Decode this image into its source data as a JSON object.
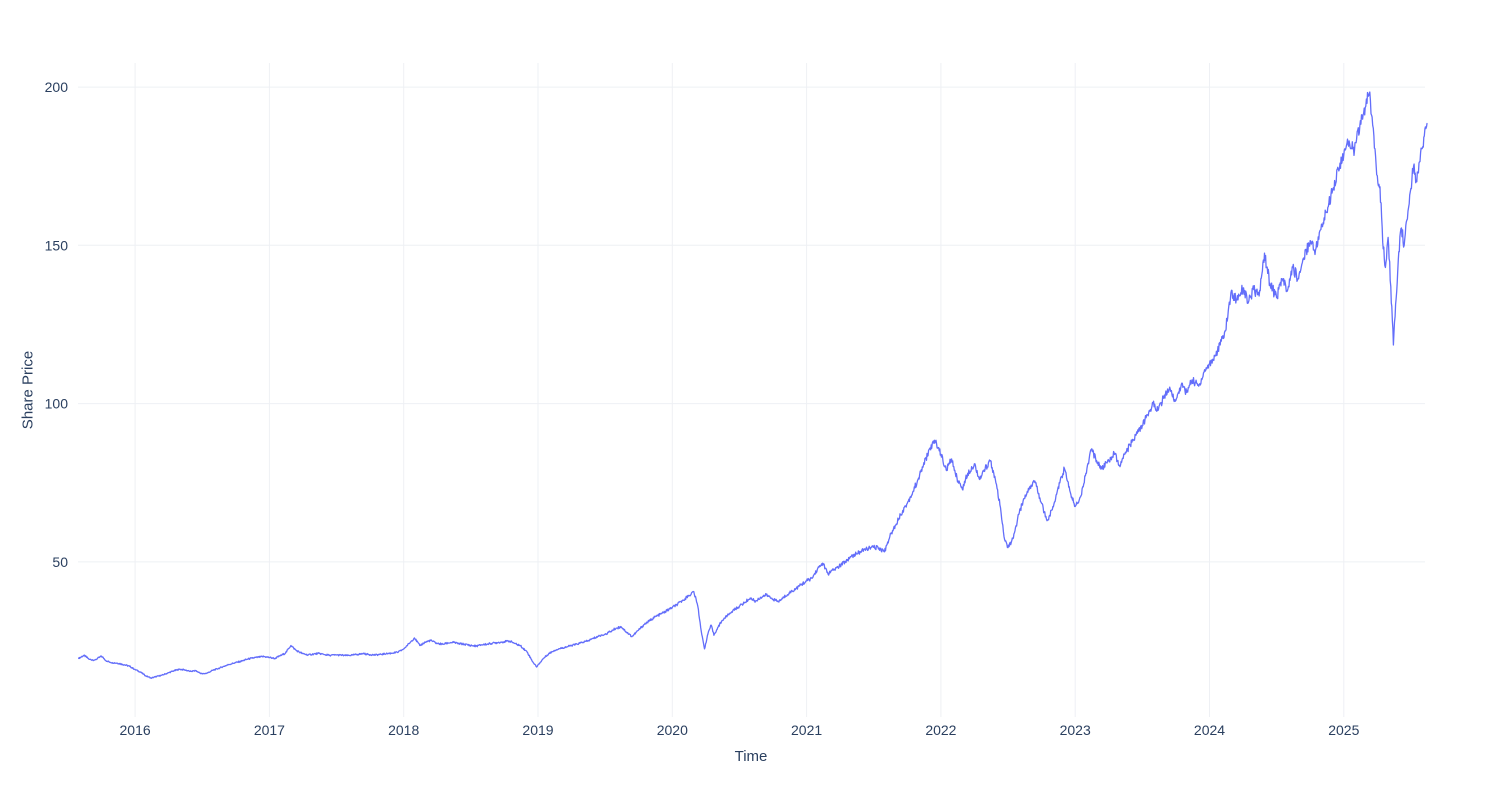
{
  "chart_data": {
    "type": "line",
    "title": "",
    "xlabel": "Time",
    "ylabel": "Share Price",
    "legend": "none",
    "grid": true,
    "x_tick_labels": [
      "2016",
      "2017",
      "2018",
      "2019",
      "2020",
      "2021",
      "2022",
      "2023",
      "2024",
      "2025"
    ],
    "x_tick_values": [
      2016,
      2017,
      2018,
      2019,
      2020,
      2021,
      2022,
      2023,
      2024,
      2025
    ],
    "y_tick_labels": [
      "50",
      "100",
      "150",
      "200"
    ],
    "y_tick_values": [
      50,
      100,
      150,
      200
    ],
    "x_range": [
      2015.575,
      2025.605
    ],
    "y_range": [
      1,
      207.6
    ],
    "colors": {
      "line": "#636efa",
      "tick_text": "#2a3f5f",
      "axis_title_text": "#2a3f5f",
      "grid": "#eef0f4",
      "background": "#ffffff"
    },
    "series": [
      {
        "name": "Share Price",
        "points": [
          [
            2015.58,
            19.5
          ],
          [
            2015.62,
            20.5
          ],
          [
            2015.66,
            19.2
          ],
          [
            2015.7,
            19.0
          ],
          [
            2015.75,
            20.2
          ],
          [
            2015.79,
            18.6
          ],
          [
            2015.83,
            18.2
          ],
          [
            2015.87,
            18.0
          ],
          [
            2015.92,
            17.5
          ],
          [
            2015.96,
            17.0
          ],
          [
            2016.0,
            16.0
          ],
          [
            2016.04,
            15.2
          ],
          [
            2016.08,
            14.0
          ],
          [
            2016.12,
            13.3
          ],
          [
            2016.16,
            13.8
          ],
          [
            2016.2,
            14.2
          ],
          [
            2016.25,
            15.0
          ],
          [
            2016.29,
            15.6
          ],
          [
            2016.33,
            16.1
          ],
          [
            2016.37,
            15.9
          ],
          [
            2016.41,
            15.4
          ],
          [
            2016.45,
            15.6
          ],
          [
            2016.5,
            14.6
          ],
          [
            2016.54,
            14.9
          ],
          [
            2016.58,
            15.8
          ],
          [
            2016.62,
            16.3
          ],
          [
            2016.66,
            17.0
          ],
          [
            2016.7,
            17.6
          ],
          [
            2016.75,
            18.2
          ],
          [
            2016.79,
            18.6
          ],
          [
            2016.83,
            19.2
          ],
          [
            2016.87,
            19.6
          ],
          [
            2016.92,
            19.9
          ],
          [
            2016.96,
            20.1
          ],
          [
            2017.0,
            19.8
          ],
          [
            2017.04,
            19.5
          ],
          [
            2017.08,
            20.3
          ],
          [
            2017.12,
            21.2
          ],
          [
            2017.16,
            23.6
          ],
          [
            2017.2,
            22.0
          ],
          [
            2017.25,
            21.0
          ],
          [
            2017.29,
            20.6
          ],
          [
            2017.33,
            20.9
          ],
          [
            2017.37,
            21.1
          ],
          [
            2017.41,
            20.7
          ],
          [
            2017.45,
            20.5
          ],
          [
            2017.5,
            20.6
          ],
          [
            2017.54,
            20.5
          ],
          [
            2017.58,
            20.4
          ],
          [
            2017.62,
            20.6
          ],
          [
            2017.66,
            20.8
          ],
          [
            2017.7,
            21.0
          ],
          [
            2017.75,
            20.7
          ],
          [
            2017.79,
            20.6
          ],
          [
            2017.83,
            20.8
          ],
          [
            2017.87,
            21.0
          ],
          [
            2017.92,
            21.2
          ],
          [
            2017.96,
            21.5
          ],
          [
            2018.0,
            22.5
          ],
          [
            2018.04,
            24.2
          ],
          [
            2018.08,
            26.0
          ],
          [
            2018.12,
            23.6
          ],
          [
            2018.16,
            24.6
          ],
          [
            2018.2,
            25.2
          ],
          [
            2018.25,
            24.2
          ],
          [
            2018.29,
            24.0
          ],
          [
            2018.33,
            24.4
          ],
          [
            2018.37,
            24.6
          ],
          [
            2018.41,
            24.2
          ],
          [
            2018.45,
            24.0
          ],
          [
            2018.5,
            23.6
          ],
          [
            2018.54,
            23.4
          ],
          [
            2018.58,
            23.8
          ],
          [
            2018.62,
            24.0
          ],
          [
            2018.66,
            24.3
          ],
          [
            2018.7,
            24.5
          ],
          [
            2018.75,
            24.8
          ],
          [
            2018.79,
            25.0
          ],
          [
            2018.83,
            24.2
          ],
          [
            2018.87,
            23.5
          ],
          [
            2018.92,
            21.5
          ],
          [
            2018.96,
            18.5
          ],
          [
            2018.99,
            16.8
          ],
          [
            2019.04,
            19.5
          ],
          [
            2019.08,
            21.0
          ],
          [
            2019.12,
            22.0
          ],
          [
            2019.16,
            22.6
          ],
          [
            2019.2,
            23.0
          ],
          [
            2019.25,
            23.6
          ],
          [
            2019.29,
            24.0
          ],
          [
            2019.33,
            24.6
          ],
          [
            2019.37,
            25.0
          ],
          [
            2019.41,
            25.8
          ],
          [
            2019.45,
            26.5
          ],
          [
            2019.5,
            27.2
          ],
          [
            2019.54,
            28.0
          ],
          [
            2019.58,
            29.0
          ],
          [
            2019.62,
            29.5
          ],
          [
            2019.66,
            27.8
          ],
          [
            2019.7,
            26.4
          ],
          [
            2019.75,
            28.5
          ],
          [
            2019.79,
            30.2
          ],
          [
            2019.83,
            31.4
          ],
          [
            2019.87,
            32.6
          ],
          [
            2019.92,
            33.6
          ],
          [
            2019.96,
            34.6
          ],
          [
            2020.0,
            35.6
          ],
          [
            2020.04,
            36.6
          ],
          [
            2020.08,
            38.0
          ],
          [
            2020.12,
            39.2
          ],
          [
            2020.16,
            40.6
          ],
          [
            2020.19,
            36.0
          ],
          [
            2020.22,
            27.0
          ],
          [
            2020.24,
            22.5
          ],
          [
            2020.27,
            28.0
          ],
          [
            2020.29,
            30.0
          ],
          [
            2020.31,
            26.8
          ],
          [
            2020.33,
            28.5
          ],
          [
            2020.37,
            31.5
          ],
          [
            2020.41,
            33.0
          ],
          [
            2020.45,
            34.5
          ],
          [
            2020.5,
            36.0
          ],
          [
            2020.54,
            37.2
          ],
          [
            2020.58,
            38.6
          ],
          [
            2020.62,
            37.6
          ],
          [
            2020.66,
            38.8
          ],
          [
            2020.7,
            39.6
          ],
          [
            2020.75,
            38.2
          ],
          [
            2020.79,
            37.4
          ],
          [
            2020.83,
            38.8
          ],
          [
            2020.87,
            40.2
          ],
          [
            2020.92,
            41.5
          ],
          [
            2020.96,
            42.8
          ],
          [
            2021.0,
            44.0
          ],
          [
            2021.04,
            44.8
          ],
          [
            2021.08,
            47.6
          ],
          [
            2021.12,
            49.6
          ],
          [
            2021.16,
            46.2
          ],
          [
            2021.2,
            47.4
          ],
          [
            2021.25,
            48.8
          ],
          [
            2021.29,
            50.2
          ],
          [
            2021.33,
            51.6
          ],
          [
            2021.37,
            52.6
          ],
          [
            2021.41,
            53.4
          ],
          [
            2021.45,
            54.2
          ],
          [
            2021.5,
            54.6
          ],
          [
            2021.54,
            54.4
          ],
          [
            2021.58,
            53.2
          ],
          [
            2021.62,
            58.0
          ],
          [
            2021.66,
            61.5
          ],
          [
            2021.7,
            65.0
          ],
          [
            2021.75,
            68.5
          ],
          [
            2021.79,
            72.0
          ],
          [
            2021.83,
            76.0
          ],
          [
            2021.87,
            80.5
          ],
          [
            2021.92,
            86.0
          ],
          [
            2021.96,
            88.2
          ],
          [
            2022.0,
            84.0
          ],
          [
            2022.04,
            79.0
          ],
          [
            2022.08,
            82.5
          ],
          [
            2022.12,
            76.5
          ],
          [
            2022.16,
            73.0
          ],
          [
            2022.2,
            78.0
          ],
          [
            2022.25,
            81.0
          ],
          [
            2022.29,
            76.0
          ],
          [
            2022.33,
            79.5
          ],
          [
            2022.37,
            82.0
          ],
          [
            2022.41,
            75.0
          ],
          [
            2022.44,
            68.0
          ],
          [
            2022.47,
            58.0
          ],
          [
            2022.5,
            54.5
          ],
          [
            2022.54,
            57.5
          ],
          [
            2022.58,
            65.0
          ],
          [
            2022.62,
            70.0
          ],
          [
            2022.66,
            73.5
          ],
          [
            2022.7,
            75.5
          ],
          [
            2022.75,
            68.5
          ],
          [
            2022.79,
            63.0
          ],
          [
            2022.83,
            66.5
          ],
          [
            2022.87,
            73.0
          ],
          [
            2022.92,
            79.5
          ],
          [
            2022.96,
            72.5
          ],
          [
            2023.0,
            67.5
          ],
          [
            2023.04,
            70.5
          ],
          [
            2023.08,
            78.0
          ],
          [
            2023.12,
            85.5
          ],
          [
            2023.16,
            82.0
          ],
          [
            2023.2,
            79.5
          ],
          [
            2023.25,
            82.0
          ],
          [
            2023.29,
            84.5
          ],
          [
            2023.33,
            80.5
          ],
          [
            2023.37,
            84.0
          ],
          [
            2023.41,
            87.0
          ],
          [
            2023.45,
            90.0
          ],
          [
            2023.5,
            93.0
          ],
          [
            2023.54,
            96.5
          ],
          [
            2023.58,
            100.0
          ],
          [
            2023.62,
            98.0
          ],
          [
            2023.66,
            102.0
          ],
          [
            2023.7,
            104.5
          ],
          [
            2023.75,
            101.0
          ],
          [
            2023.79,
            106.0
          ],
          [
            2023.83,
            103.5
          ],
          [
            2023.87,
            107.5
          ],
          [
            2023.92,
            105.5
          ],
          [
            2023.96,
            110.0
          ],
          [
            2024.0,
            112.5
          ],
          [
            2024.04,
            115.0
          ],
          [
            2024.08,
            118.5
          ],
          [
            2024.12,
            123.0
          ],
          [
            2024.16,
            135.0
          ],
          [
            2024.2,
            133.0
          ],
          [
            2024.25,
            136.5
          ],
          [
            2024.29,
            132.0
          ],
          [
            2024.33,
            136.0
          ],
          [
            2024.37,
            134.0
          ],
          [
            2024.41,
            147.5
          ],
          [
            2024.45,
            138.0
          ],
          [
            2024.5,
            133.5
          ],
          [
            2024.54,
            139.5
          ],
          [
            2024.58,
            135.5
          ],
          [
            2024.62,
            143.0
          ],
          [
            2024.66,
            139.5
          ],
          [
            2024.7,
            146.0
          ],
          [
            2024.75,
            151.5
          ],
          [
            2024.79,
            148.5
          ],
          [
            2024.83,
            155.0
          ],
          [
            2024.87,
            160.5
          ],
          [
            2024.92,
            168.0
          ],
          [
            2024.96,
            174.0
          ],
          [
            2025.0,
            178.5
          ],
          [
            2025.04,
            183.0
          ],
          [
            2025.08,
            180.0
          ],
          [
            2025.12,
            188.0
          ],
          [
            2025.16,
            193.5
          ],
          [
            2025.19,
            198.0
          ],
          [
            2025.22,
            187.0
          ],
          [
            2025.25,
            172.0
          ],
          [
            2025.27,
            168.5
          ],
          [
            2025.29,
            151.0
          ],
          [
            2025.31,
            143.0
          ],
          [
            2025.33,
            152.5
          ],
          [
            2025.35,
            137.0
          ],
          [
            2025.37,
            118.5
          ],
          [
            2025.39,
            133.0
          ],
          [
            2025.41,
            148.0
          ],
          [
            2025.43,
            155.5
          ],
          [
            2025.45,
            150.0
          ],
          [
            2025.47,
            158.0
          ],
          [
            2025.5,
            168.0
          ],
          [
            2025.52,
            175.0
          ],
          [
            2025.54,
            170.5
          ],
          [
            2025.56,
            176.0
          ],
          [
            2025.58,
            180.5
          ],
          [
            2025.6,
            184.5
          ],
          [
            2025.62,
            188.5
          ]
        ]
      }
    ]
  }
}
